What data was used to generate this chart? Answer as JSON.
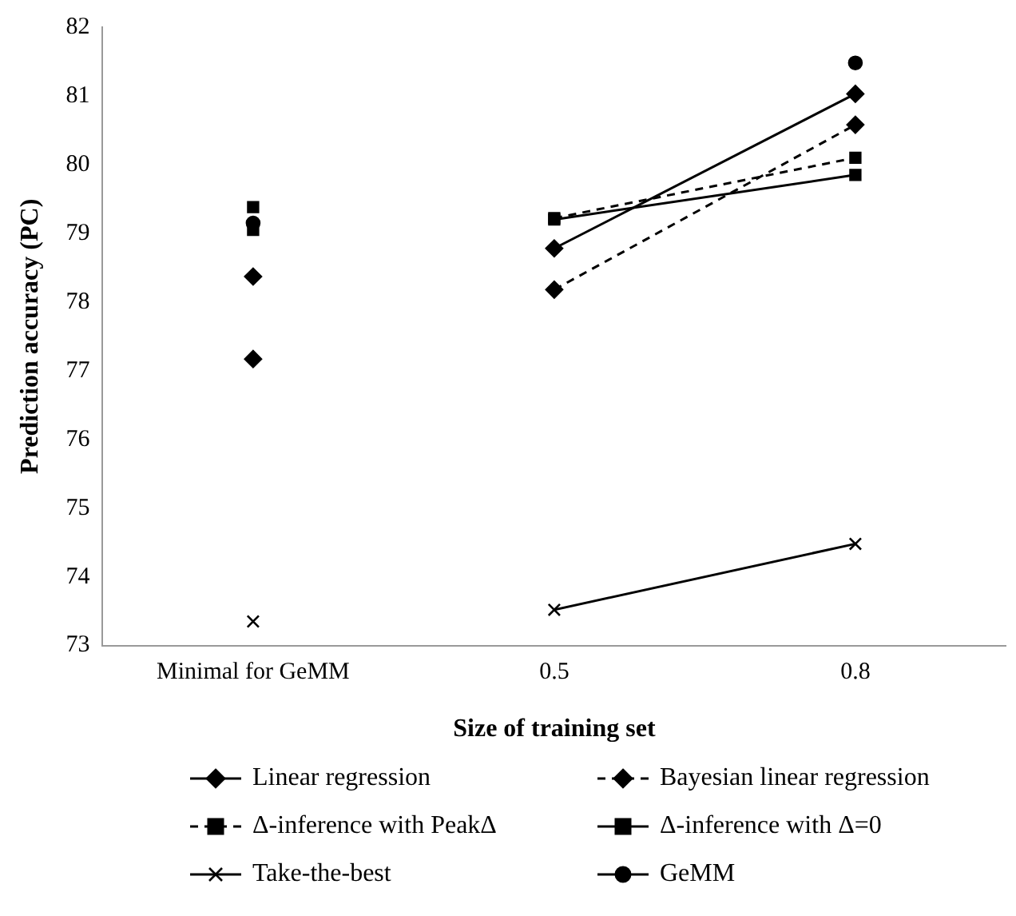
{
  "chart_data": {
    "type": "line",
    "xlabel": "Size of training set",
    "ylabel": "Prediction accuracy (PC)",
    "categories": [
      "Minimal for GeMM",
      "0.5",
      "0.8"
    ],
    "ylim": [
      73,
      82
    ],
    "yticks": [
      73,
      74,
      75,
      76,
      77,
      78,
      79,
      80,
      81,
      82
    ],
    "grid": false,
    "legend": "bottom",
    "series": [
      {
        "name": "Linear regression",
        "color": "#000000",
        "marker": "diamond",
        "line_style": "solid",
        "values": [
          null,
          78.78,
          81.03
        ]
      },
      {
        "name": "Bayesian linear regression",
        "color": "#000000",
        "marker": "diamond",
        "line_style": "dashed",
        "values": [
          null,
          78.18,
          80.58
        ]
      },
      {
        "name": "Δ-inference with PeakΔ",
        "color": "#000000",
        "marker": "square",
        "line_style": "dashed",
        "values": [
          null,
          79.22,
          80.1
        ]
      },
      {
        "name": "Δ-inference with Δ=0",
        "color": "#000000",
        "marker": "square",
        "line_style": "solid",
        "values": [
          null,
          79.2,
          79.85
        ]
      },
      {
        "name": "Take-the-best",
        "color": "#000000",
        "marker": "cross",
        "line_style": "solid",
        "values": [
          null,
          73.52,
          74.48
        ]
      },
      {
        "name": "GeMM",
        "color": "#000000",
        "marker": "circle",
        "line_style": "solid",
        "values": [
          null,
          null,
          81.48
        ]
      },
      {
        "type": "scatter",
        "color": "#000000",
        "marker": "diamond",
        "x": [
          "Minimal for GeMM"
        ],
        "values": [
          78.37
        ]
      },
      {
        "type": "scatter",
        "color": "#000000",
        "marker": "diamond",
        "x": [
          "Minimal for GeMM"
        ],
        "values": [
          77.17
        ]
      },
      {
        "type": "scatter",
        "color": "#000000",
        "marker": "square",
        "x": [
          "Minimal for GeMM"
        ],
        "values": [
          79.05
        ]
      },
      {
        "type": "scatter",
        "color": "#000000",
        "marker": "square",
        "x": [
          "Minimal for GeMM"
        ],
        "values": [
          79.38
        ]
      },
      {
        "type": "scatter",
        "color": "#000000",
        "marker": "cross",
        "x": [
          "Minimal for GeMM"
        ],
        "values": [
          73.35
        ]
      },
      {
        "type": "scatter",
        "color": "#000000",
        "marker": "circle",
        "x": [
          "Minimal for GeMM"
        ],
        "values": [
          79.15
        ]
      }
    ]
  }
}
